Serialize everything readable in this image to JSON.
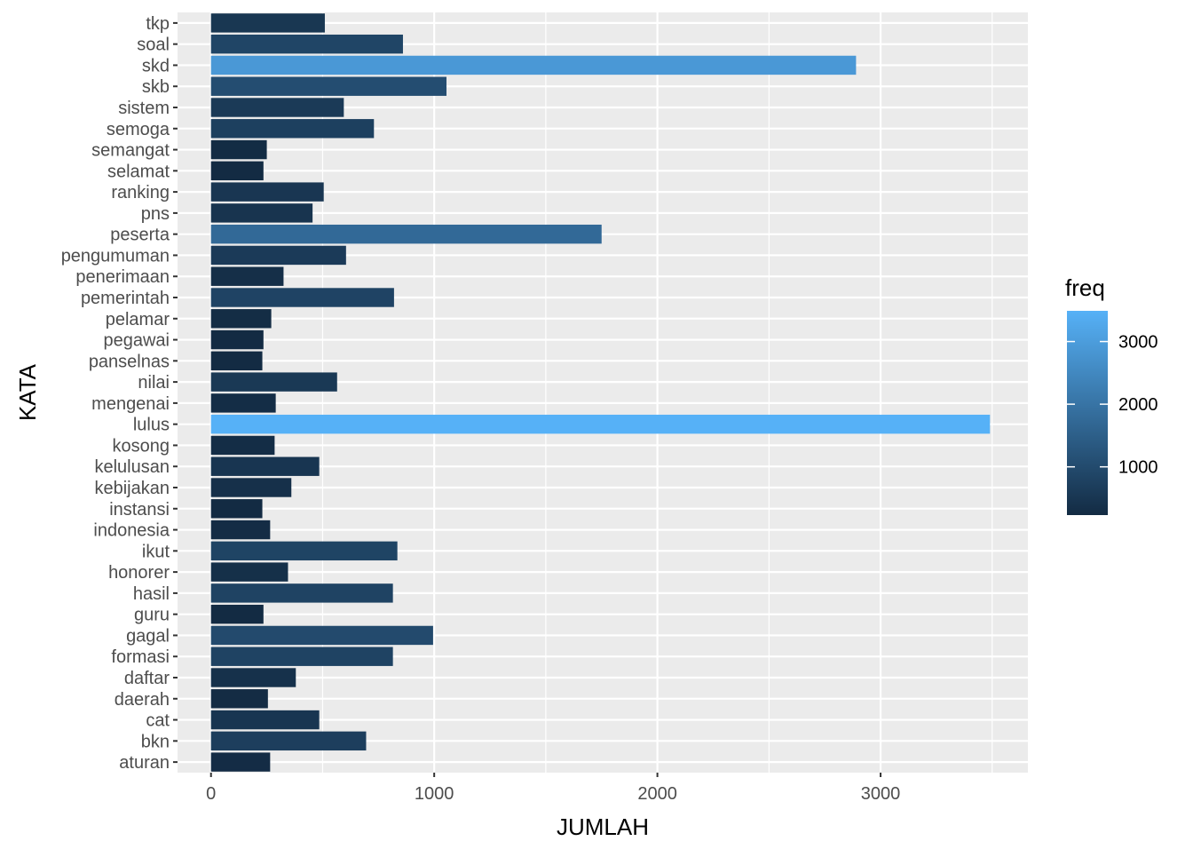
{
  "chart_data": {
    "type": "bar",
    "orientation": "horizontal",
    "xlabel": "JUMLAH",
    "ylabel": "KATA",
    "xlim": [
      -150,
      3660
    ],
    "x_ticks": [
      0,
      1000,
      2000,
      3000
    ],
    "x_tick_labels": [
      "0",
      "1000",
      "2000",
      "3000"
    ],
    "grid": true,
    "legend_title": "freq",
    "legend_position": "right",
    "legend_ticks": [
      1000,
      2000,
      3000
    ],
    "legend_tick_labels": [
      "1000",
      "2000",
      "3000"
    ],
    "color_low": "#132B43",
    "color_high": "#56B1F7",
    "color_range": [
      230,
      3490
    ],
    "panel_background": "#EBEBEB",
    "categories": [
      "tkp",
      "soal",
      "skd",
      "skb",
      "sistem",
      "semoga",
      "semangat",
      "selamat",
      "ranking",
      "pns",
      "peserta",
      "pengumuman",
      "penerimaan",
      "pemerintah",
      "pelamar",
      "pegawai",
      "panselnas",
      "nilai",
      "mengenai",
      "lulus",
      "kosong",
      "kelulusan",
      "kebijakan",
      "instansi",
      "indonesia",
      "ikut",
      "honorer",
      "hasil",
      "guru",
      "gagal",
      "formasi",
      "daftar",
      "daerah",
      "cat",
      "bkn",
      "aturan"
    ],
    "values": [
      510,
      860,
      2890,
      1055,
      595,
      730,
      250,
      235,
      505,
      455,
      1750,
      605,
      325,
      820,
      270,
      235,
      230,
      565,
      290,
      3490,
      285,
      485,
      360,
      230,
      265,
      835,
      345,
      815,
      235,
      995,
      815,
      380,
      255,
      485,
      695,
      265
    ]
  }
}
